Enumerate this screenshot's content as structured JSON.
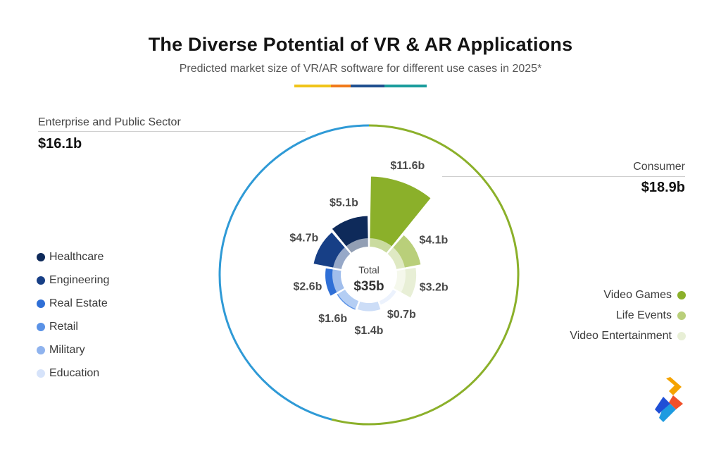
{
  "title": "The Diverse Potential of VR & AR Applications",
  "subtitle": "Predicted market size of VR/AR software for different use cases in 2025*",
  "stripe_colors": [
    "#f0c419",
    "#f07a1a",
    "#1f4f8f",
    "#1a9c9c"
  ],
  "groups": {
    "enterprise": {
      "label": "Enterprise and Public Sector",
      "value": "$16.1b",
      "color": "#2f9ad6"
    },
    "consumer": {
      "label": "Consumer",
      "value": "$18.9b",
      "color": "#8bb02a"
    }
  },
  "center": {
    "label": "Total",
    "value": "$35b"
  },
  "legend_left": [
    {
      "label": "Healthcare",
      "color": "#0e2a5a"
    },
    {
      "label": "Engineering",
      "color": "#173f86"
    },
    {
      "label": "Real Estate",
      "color": "#2f6fd6"
    },
    {
      "label": "Retail",
      "color": "#5a92e6"
    },
    {
      "label": "Military",
      "color": "#8fb3ee"
    },
    {
      "label": "Education",
      "color": "#d6e3fa"
    }
  ],
  "legend_right": [
    {
      "label": "Video Games",
      "color": "#8bb02a"
    },
    {
      "label": "Life Events",
      "color": "#b9cf7a"
    },
    {
      "label": "Video Entertainment",
      "color": "#e8efd6"
    }
  ],
  "chart_data": {
    "type": "pie",
    "title": "The Diverse Potential of VR & AR Applications",
    "subtitle": "Predicted market size of VR/AR software for different use cases in 2025*",
    "unit": "$ billion",
    "total": 35,
    "groups": [
      {
        "name": "Consumer",
        "total": 18.9
      },
      {
        "name": "Enterprise and Public Sector",
        "total": 16.1
      }
    ],
    "slices": [
      {
        "name": "Video Games",
        "group": "Consumer",
        "value": 11.6,
        "label": "$11.6b",
        "color": "#8bb02a"
      },
      {
        "name": "Life Events",
        "group": "Consumer",
        "value": 4.1,
        "label": "$4.1b",
        "color": "#b9cf7a"
      },
      {
        "name": "Video Entertainment",
        "group": "Consumer",
        "value": 3.2,
        "label": "$3.2b",
        "color": "#e8efd6"
      },
      {
        "name": "Education",
        "group": "Enterprise and Public Sector",
        "value": 0.7,
        "label": "$0.7b",
        "color": "#d6e3fa"
      },
      {
        "name": "Military",
        "group": "Enterprise and Public Sector",
        "value": 1.4,
        "label": "$1.4b",
        "color": "#8fb3ee"
      },
      {
        "name": "Retail",
        "group": "Enterprise and Public Sector",
        "value": 1.6,
        "label": "$1.6b",
        "color": "#5a92e6"
      },
      {
        "name": "Real Estate",
        "group": "Enterprise and Public Sector",
        "value": 2.6,
        "label": "$2.6b",
        "color": "#2f6fd6"
      },
      {
        "name": "Engineering",
        "group": "Enterprise and Public Sector",
        "value": 4.7,
        "label": "$4.7b",
        "color": "#173f86"
      },
      {
        "name": "Healthcare",
        "group": "Enterprise and Public Sector",
        "value": 5.1,
        "label": "$5.1b",
        "color": "#0e2a5a"
      }
    ]
  }
}
